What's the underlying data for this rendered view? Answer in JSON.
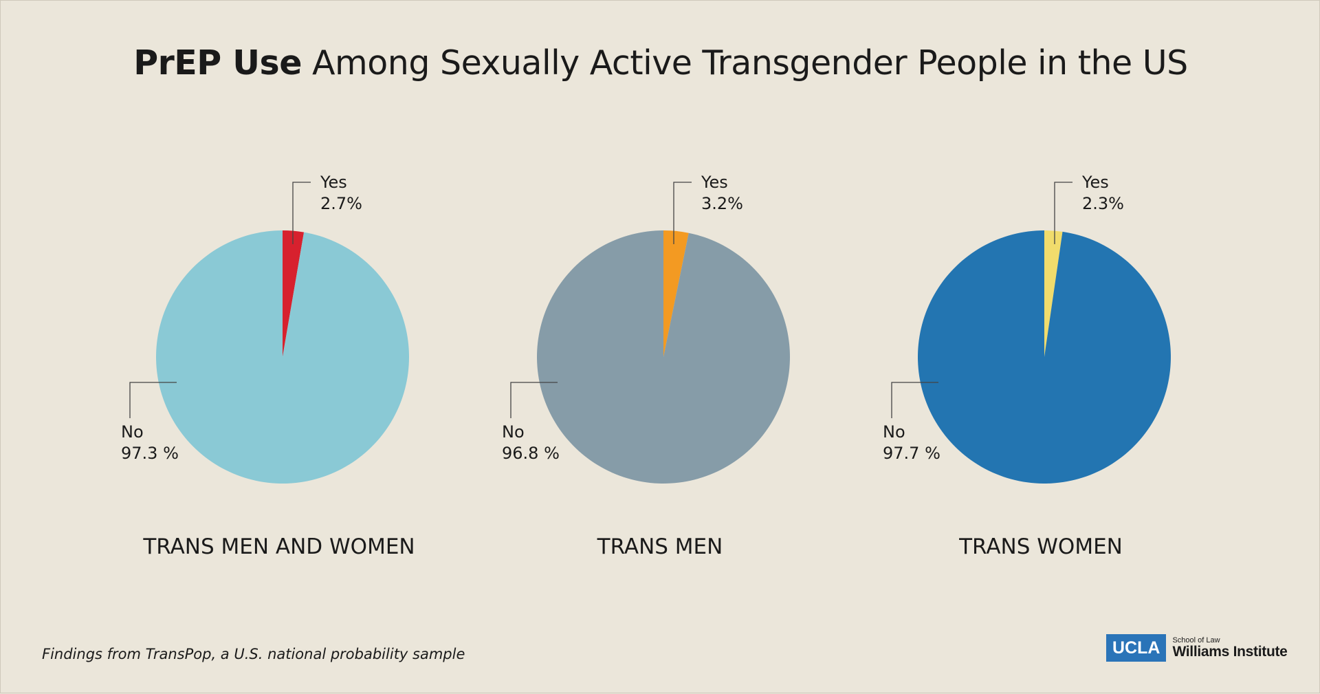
{
  "title": {
    "bold": "PrEP Use",
    "rest": " Among Sexually Active Transgender People in the US"
  },
  "footnote": "Findings from TransPop, a U.S. national probability sample",
  "logo": {
    "box": "UCLA",
    "sub": "School of Law",
    "main": "Williams Institute"
  },
  "chart_data": [
    {
      "type": "pie",
      "category": "TRANS MEN AND WOMEN",
      "slices": [
        {
          "name": "Yes",
          "value": 2.7,
          "label": "2.7%",
          "color": "#d7212e"
        },
        {
          "name": "No",
          "value": 97.3,
          "label": "97.3 %",
          "color": "#8ac9d5"
        }
      ]
    },
    {
      "type": "pie",
      "category": "TRANS MEN",
      "slices": [
        {
          "name": "Yes",
          "value": 3.2,
          "label": "3.2%",
          "color": "#f39a22"
        },
        {
          "name": "No",
          "value": 96.8,
          "label": "96.8 %",
          "color": "#869ca8"
        }
      ]
    },
    {
      "type": "pie",
      "category": "TRANS WOMEN",
      "slices": [
        {
          "name": "Yes",
          "value": 2.3,
          "label": "2.3%",
          "color": "#f1dc6c"
        },
        {
          "name": "No",
          "value": 97.7,
          "label": "97.7 %",
          "color": "#2375b1"
        }
      ]
    }
  ]
}
